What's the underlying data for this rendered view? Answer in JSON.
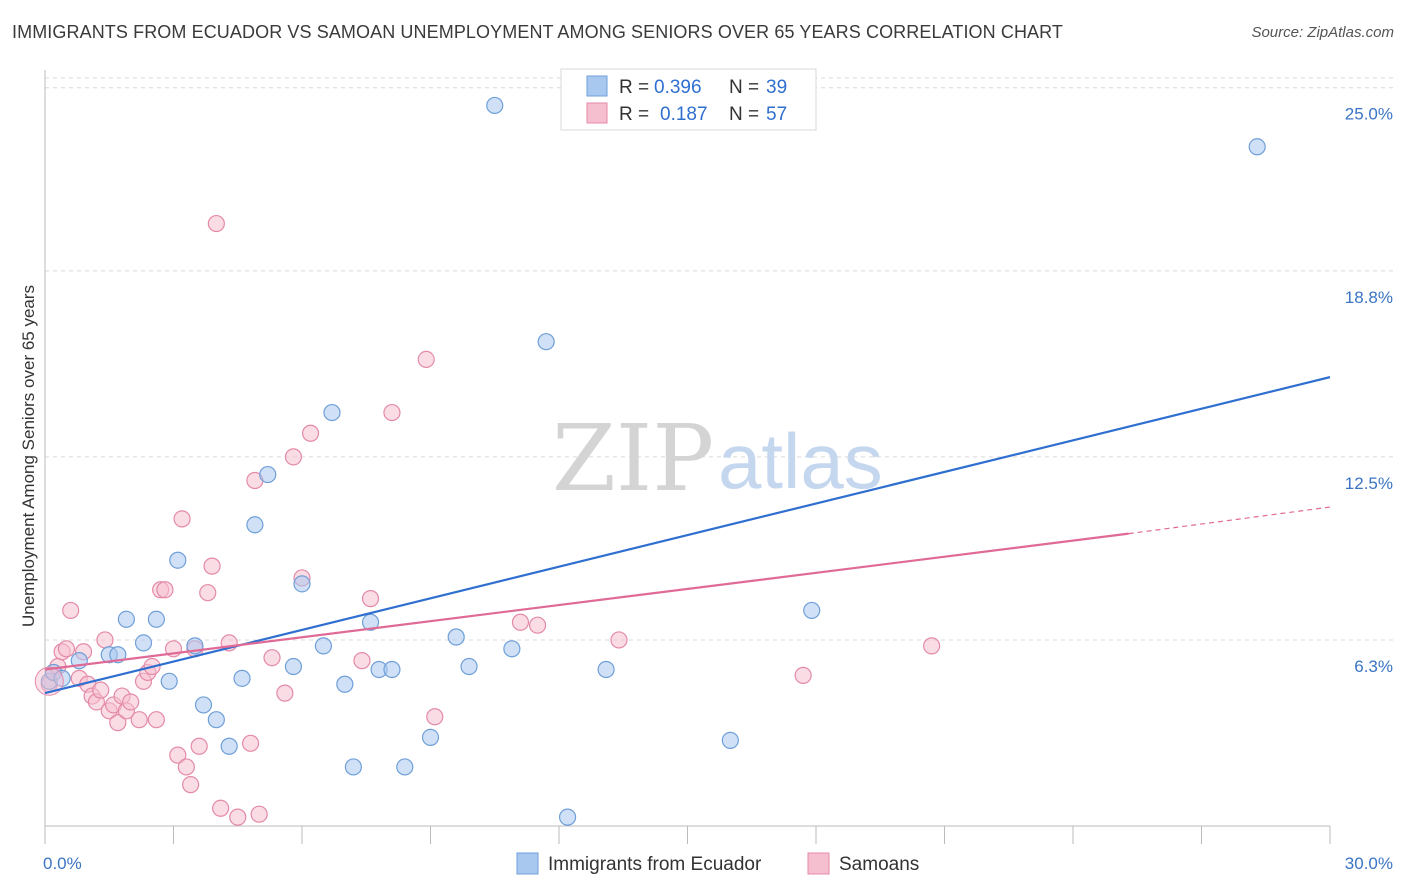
{
  "title": "IMMIGRANTS FROM ECUADOR VS SAMOAN UNEMPLOYMENT AMONG SENIORS OVER 65 YEARS CORRELATION CHART",
  "source": "Source: ZipAtlas.com",
  "watermark": {
    "zip": "ZIP",
    "atlas": "atlas"
  },
  "colors": {
    "ecuador_fill": "#a9c8f0",
    "ecuador_stroke": "#6f9fd8",
    "ecuador_line": "#2f6fd0",
    "samoan_fill": "#f6bfd0",
    "samoan_stroke": "#e48aa8",
    "samoan_line": "#e06a96",
    "grid": "#d9d9d9",
    "axis_text": "#3b74c4"
  },
  "legend": {
    "rows": [
      {
        "r_label": "R =",
        "r_value": "0.396",
        "n_label": "N =",
        "n_value": "39"
      },
      {
        "r_label": "R =",
        "r_value": "0.187",
        "n_label": "N =",
        "n_value": "57"
      }
    ]
  },
  "bottom_legend": [
    "Immigrants from Ecuador",
    "Samoans"
  ],
  "chart_data": {
    "type": "scatter",
    "xlabel": "",
    "ylabel": "Unemployment Among Seniors over 65 years",
    "xlim": [
      0,
      30
    ],
    "ylim": [
      0,
      25.6
    ],
    "x_tick_labels": [
      "0.0%",
      "30.0%"
    ],
    "y_ticks": [
      6.3,
      12.5,
      18.8,
      25.0
    ],
    "y_tick_labels": [
      "6.3%",
      "12.5%",
      "18.8%",
      "25.0%"
    ],
    "grid": true,
    "legend_position": "top-center",
    "series": [
      {
        "name": "Immigrants from Ecuador",
        "r": 0.396,
        "n": 39,
        "trend": {
          "x": [
            0,
            30
          ],
          "y": [
            4.5,
            15.2
          ]
        },
        "points": [
          [
            0.1,
            4.9
          ],
          [
            0.2,
            5.2
          ],
          [
            0.4,
            5.0
          ],
          [
            0.8,
            5.6
          ],
          [
            1.5,
            5.8
          ],
          [
            1.7,
            5.8
          ],
          [
            1.9,
            7.0
          ],
          [
            2.3,
            6.2
          ],
          [
            2.6,
            7.0
          ],
          [
            2.9,
            4.9
          ],
          [
            3.1,
            9.0
          ],
          [
            3.5,
            6.1
          ],
          [
            3.7,
            4.1
          ],
          [
            4.0,
            3.6
          ],
          [
            4.3,
            2.7
          ],
          [
            4.6,
            5.0
          ],
          [
            4.9,
            10.2
          ],
          [
            5.2,
            11.9
          ],
          [
            5.8,
            5.4
          ],
          [
            6.0,
            8.2
          ],
          [
            6.5,
            6.1
          ],
          [
            6.7,
            14.0
          ],
          [
            7.0,
            4.8
          ],
          [
            7.2,
            2.0
          ],
          [
            7.6,
            6.9
          ],
          [
            7.8,
            5.3
          ],
          [
            8.1,
            5.3
          ],
          [
            8.4,
            2.0
          ],
          [
            9.0,
            3.0
          ],
          [
            9.6,
            6.4
          ],
          [
            9.9,
            5.4
          ],
          [
            10.5,
            24.4
          ],
          [
            10.9,
            6.0
          ],
          [
            11.7,
            16.4
          ],
          [
            12.2,
            0.3
          ],
          [
            13.1,
            5.3
          ],
          [
            16.0,
            2.9
          ],
          [
            17.9,
            7.3
          ],
          [
            28.3,
            23.0
          ]
        ]
      },
      {
        "name": "Samoans",
        "r": 0.187,
        "n": 57,
        "trend": {
          "x": [
            0,
            25.3
          ],
          "y": [
            5.3,
            9.9
          ]
        },
        "trend_dashed": {
          "x": [
            25.3,
            30
          ],
          "y": [
            9.9,
            10.8
          ]
        },
        "points": [
          [
            0.1,
            4.8
          ],
          [
            0.2,
            5.2
          ],
          [
            0.3,
            5.4
          ],
          [
            0.4,
            5.9
          ],
          [
            0.5,
            6.0
          ],
          [
            0.6,
            7.3
          ],
          [
            0.8,
            5.0
          ],
          [
            0.9,
            5.9
          ],
          [
            1.0,
            4.8
          ],
          [
            1.1,
            4.4
          ],
          [
            1.2,
            4.2
          ],
          [
            1.3,
            4.6
          ],
          [
            1.4,
            6.3
          ],
          [
            1.5,
            3.9
          ],
          [
            1.6,
            4.1
          ],
          [
            1.7,
            3.5
          ],
          [
            1.8,
            4.4
          ],
          [
            1.9,
            3.9
          ],
          [
            2.0,
            4.2
          ],
          [
            2.2,
            3.6
          ],
          [
            2.3,
            4.9
          ],
          [
            2.4,
            5.2
          ],
          [
            2.5,
            5.4
          ],
          [
            2.6,
            3.6
          ],
          [
            2.7,
            8.0
          ],
          [
            2.8,
            8.0
          ],
          [
            3.0,
            6.0
          ],
          [
            3.1,
            2.4
          ],
          [
            3.2,
            10.4
          ],
          [
            3.3,
            2.0
          ],
          [
            3.4,
            1.4
          ],
          [
            3.5,
            6.0
          ],
          [
            3.6,
            2.7
          ],
          [
            3.8,
            7.9
          ],
          [
            3.9,
            8.8
          ],
          [
            4.0,
            20.4
          ],
          [
            4.1,
            0.6
          ],
          [
            4.3,
            6.2
          ],
          [
            4.5,
            0.3
          ],
          [
            4.8,
            2.8
          ],
          [
            4.9,
            11.7
          ],
          [
            5.0,
            0.4
          ],
          [
            5.3,
            5.7
          ],
          [
            5.6,
            4.5
          ],
          [
            5.8,
            12.5
          ],
          [
            6.0,
            8.4
          ],
          [
            6.2,
            13.3
          ],
          [
            7.4,
            5.6
          ],
          [
            7.6,
            7.7
          ],
          [
            8.1,
            14.0
          ],
          [
            8.9,
            15.8
          ],
          [
            9.1,
            3.7
          ],
          [
            11.1,
            6.9
          ],
          [
            11.5,
            6.8
          ],
          [
            13.4,
            6.3
          ],
          [
            17.7,
            5.1
          ],
          [
            20.7,
            6.1
          ]
        ]
      }
    ]
  }
}
